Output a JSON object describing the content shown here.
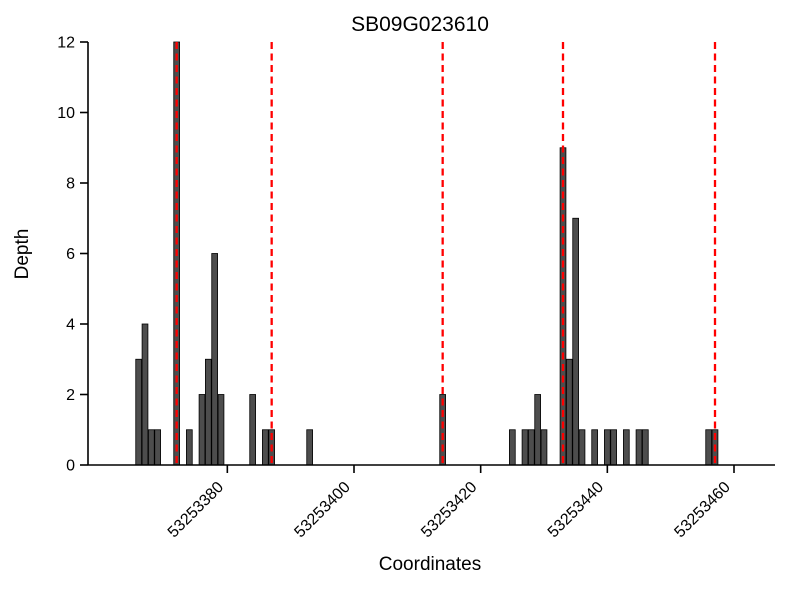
{
  "chart_data": {
    "type": "bar",
    "title": "SB09G023610",
    "xlabel": "Coordinates",
    "ylabel": "Depth",
    "xlim": [
      53253358,
      53253466
    ],
    "ylim": [
      0,
      12
    ],
    "yticks": [
      0,
      2,
      4,
      6,
      8,
      10,
      12
    ],
    "xticks": [
      53253380,
      53253400,
      53253420,
      53253440,
      53253460
    ],
    "grid": false,
    "legend": null,
    "bar_color": "#4d4d4d",
    "bar_edge_color": "#000000",
    "vline_color": "#ff0000",
    "vline_style": "dashed",
    "bars": [
      {
        "x": 53253366,
        "depth": 3
      },
      {
        "x": 53253367,
        "depth": 4
      },
      {
        "x": 53253368,
        "depth": 1
      },
      {
        "x": 53253369,
        "depth": 1
      },
      {
        "x": 53253372,
        "depth": 12
      },
      {
        "x": 53253374,
        "depth": 1
      },
      {
        "x": 53253376,
        "depth": 2
      },
      {
        "x": 53253377,
        "depth": 3
      },
      {
        "x": 53253378,
        "depth": 6
      },
      {
        "x": 53253379,
        "depth": 2
      },
      {
        "x": 53253384,
        "depth": 2
      },
      {
        "x": 53253386,
        "depth": 1
      },
      {
        "x": 53253387,
        "depth": 1
      },
      {
        "x": 53253393,
        "depth": 1
      },
      {
        "x": 53253414,
        "depth": 2
      },
      {
        "x": 53253425,
        "depth": 1
      },
      {
        "x": 53253427,
        "depth": 1
      },
      {
        "x": 53253428,
        "depth": 1
      },
      {
        "x": 53253429,
        "depth": 2
      },
      {
        "x": 53253430,
        "depth": 1
      },
      {
        "x": 53253433,
        "depth": 9
      },
      {
        "x": 53253434,
        "depth": 3
      },
      {
        "x": 53253435,
        "depth": 7
      },
      {
        "x": 53253436,
        "depth": 1
      },
      {
        "x": 53253438,
        "depth": 1
      },
      {
        "x": 53253440,
        "depth": 1
      },
      {
        "x": 53253441,
        "depth": 1
      },
      {
        "x": 53253443,
        "depth": 1
      },
      {
        "x": 53253445,
        "depth": 1
      },
      {
        "x": 53253446,
        "depth": 1
      },
      {
        "x": 53253456,
        "depth": 1
      },
      {
        "x": 53253457,
        "depth": 1
      }
    ],
    "vlines": [
      53253372,
      53253387,
      53253414,
      53253433,
      53253457
    ]
  }
}
